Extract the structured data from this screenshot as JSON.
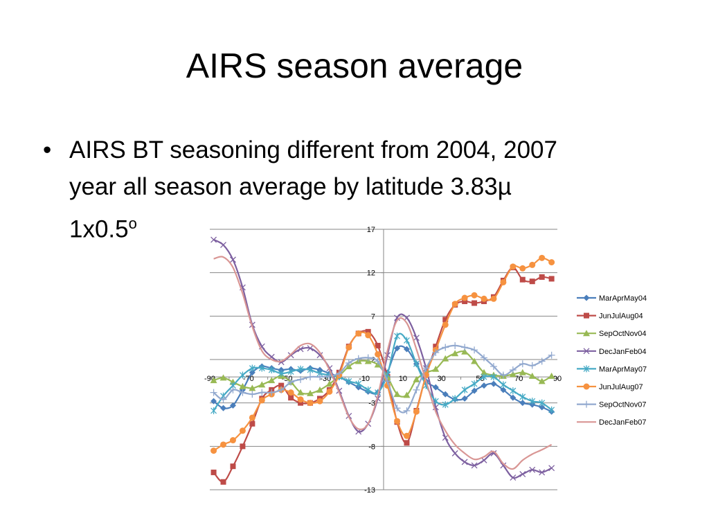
{
  "slide": {
    "title": "AIRS season average",
    "bullet_symbol": "•",
    "bullet_line1": "AIRS BT seasoning different from 2004, 2007",
    "bullet_line2": "year all season average by latitude 3.83µ",
    "bullet_line3_main": "1x0.5",
    "bullet_line3_sup": "o"
  },
  "chart_data": {
    "type": "line",
    "title": "",
    "xlabel": "",
    "ylabel": "",
    "xlim": [
      -90,
      90
    ],
    "ylim": [
      -13,
      17
    ],
    "x_ticks": [
      -90,
      -70,
      -50,
      -30,
      -10,
      10,
      30,
      50,
      70,
      90
    ],
    "x_tick_labels": [
      "-90",
      "-70",
      "-50",
      "-30",
      "-10",
      "10",
      "30",
      "50",
      "70",
      "90"
    ],
    "y_ticks": [
      17,
      12,
      7,
      2,
      -3,
      -8,
      -13
    ],
    "y_tick_labels": [
      "17",
      "12",
      "7",
      "2",
      "-3",
      "-8",
      "-13"
    ],
    "grid": "horizontal",
    "legend_position": "right",
    "x": [
      -88,
      -83,
      -78,
      -73,
      -68,
      -63,
      -58,
      -53,
      -48,
      -43,
      -38,
      -33,
      -28,
      -23,
      -18,
      -13,
      -8,
      -3,
      2,
      7,
      12,
      17,
      22,
      27,
      32,
      37,
      42,
      47,
      52,
      57,
      62,
      67,
      72,
      77,
      82,
      87
    ],
    "series": [
      {
        "name": "MarAprMay04",
        "color": "#4a7ebb",
        "marker": "diamond",
        "values": [
          -2.8,
          -3.6,
          -3.3,
          -1.5,
          0.5,
          1.2,
          1.0,
          0.8,
          0.9,
          0.7,
          1.0,
          0.8,
          0.4,
          0.0,
          -0.6,
          -1.2,
          -1.7,
          -1.8,
          0.5,
          3.3,
          3.2,
          1.5,
          -0.5,
          -1.2,
          -2.0,
          -2.6,
          -2.5,
          -1.6,
          -1.0,
          -0.8,
          -1.5,
          -2.4,
          -3.0,
          -3.2,
          -3.5,
          -4.0
        ]
      },
      {
        "name": "JunJulAug04",
        "color": "#be4b48",
        "marker": "square",
        "values": [
          -11.0,
          -12.1,
          -10.3,
          -8.0,
          -5.4,
          -2.5,
          -1.5,
          -1.0,
          -2.4,
          -3.0,
          -3.0,
          -2.5,
          -1.5,
          0.5,
          3.5,
          5.0,
          5.2,
          3.6,
          0.0,
          -5.2,
          -7.6,
          -3.9,
          0.2,
          3.5,
          6.6,
          8.3,
          8.7,
          8.5,
          8.7,
          9.2,
          11.1,
          12.6,
          11.2,
          11.0,
          11.5,
          11.3
        ]
      },
      {
        "name": "SepOctNov04",
        "color": "#98b954",
        "marker": "triangle",
        "values": [
          -0.4,
          -0.1,
          -0.6,
          -1.1,
          -1.3,
          -0.9,
          -0.4,
          0.1,
          -0.6,
          -1.8,
          -1.9,
          -1.5,
          -0.8,
          0.1,
          1.2,
          1.8,
          1.8,
          1.4,
          0.0,
          -2.0,
          -2.1,
          -0.3,
          0.5,
          0.9,
          2.1,
          2.7,
          2.9,
          1.8,
          0.5,
          0.2,
          0.1,
          0.3,
          0.5,
          0.1,
          -0.5,
          0.1
        ]
      },
      {
        "name": "DecJanFeb04",
        "color": "#7d60a0",
        "marker": "x",
        "values": [
          15.8,
          15.2,
          13.5,
          10.3,
          6.0,
          3.5,
          2.3,
          1.7,
          2.5,
          3.2,
          3.3,
          2.5,
          1.0,
          -1.6,
          -4.5,
          -6.3,
          -5.4,
          -2.5,
          2.5,
          6.8,
          6.8,
          4.5,
          1.0,
          -3.5,
          -7.0,
          -8.8,
          -9.8,
          -10.2,
          -9.6,
          -8.8,
          -10.2,
          -11.6,
          -11.2,
          -10.7,
          -11.0,
          -10.5
        ]
      },
      {
        "name": "MarAprMay07",
        "color": "#46aac5",
        "marker": "asterisk",
        "values": [
          -3.9,
          -2.2,
          -1.0,
          0.2,
          1.0,
          1.0,
          0.8,
          0.4,
          0.6,
          0.9,
          0.8,
          0.4,
          0.2,
          0.0,
          -0.5,
          -0.8,
          -1.5,
          -1.8,
          0.3,
          4.7,
          4.2,
          1.5,
          -1.0,
          -2.8,
          -3.2,
          -2.5,
          -1.5,
          -0.8,
          0.0,
          0.0,
          -0.9,
          -1.6,
          -2.3,
          -2.8,
          -3.0,
          -3.8
        ]
      },
      {
        "name": "JunJulAug07",
        "color": "#f69240",
        "marker": "circle",
        "values": [
          -8.5,
          -7.8,
          -7.3,
          -6.2,
          -4.7,
          -2.7,
          -2.0,
          -1.5,
          -1.8,
          -2.6,
          -3.0,
          -2.8,
          -1.7,
          0.2,
          3.4,
          5.0,
          4.8,
          2.6,
          -1.0,
          -5.1,
          -6.8,
          -4.0,
          0.2,
          3.1,
          6.0,
          8.4,
          9.1,
          9.4,
          9.0,
          9.0,
          10.9,
          12.7,
          12.5,
          12.9,
          13.7,
          13.2
        ]
      },
      {
        "name": "SepOctNov07",
        "color": "#92a9cf",
        "marker": "plus",
        "values": [
          -1.8,
          -2.6,
          -1.5,
          -1.8,
          -2.0,
          -1.8,
          -1.8,
          -1.5,
          -0.6,
          -0.3,
          0.0,
          0.0,
          0.1,
          0.4,
          1.6,
          2.1,
          2.2,
          1.8,
          -0.5,
          -3.6,
          -3.9,
          -1.5,
          1.0,
          2.8,
          3.4,
          3.6,
          3.4,
          3.1,
          2.2,
          1.2,
          0.2,
          0.8,
          1.5,
          1.3,
          1.8,
          2.5
        ]
      },
      {
        "name": "DecJanFeb07",
        "color": "#d99694",
        "marker": "none",
        "values": [
          13.6,
          13.8,
          12.6,
          9.6,
          5.8,
          3.0,
          2.0,
          1.8,
          2.6,
          3.6,
          3.8,
          2.8,
          0.8,
          -1.8,
          -4.6,
          -6.0,
          -5.4,
          -2.2,
          3.0,
          6.5,
          6.2,
          3.2,
          -0.5,
          -4.0,
          -6.2,
          -7.8,
          -8.8,
          -9.5,
          -9.2,
          -8.6,
          -10.0,
          -10.6,
          -9.6,
          -8.9,
          -8.4,
          -7.8
        ]
      }
    ]
  }
}
